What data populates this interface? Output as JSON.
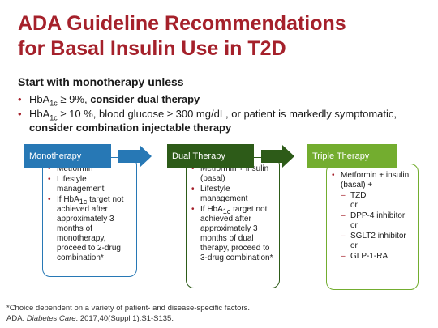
{
  "title": {
    "line1": "ADA Guideline Recommendations",
    "line2": "for Basal Insulin Use in T2D"
  },
  "intro": "Start with monotherapy unless",
  "bullets": [
    {
      "pre": "HbA",
      "sub": "1c",
      "mid": " ≥ 9%, ",
      "bold": "consider dual therapy"
    },
    {
      "pre": "HbA",
      "sub": "1c",
      "mid": " ≥ 10 %, blood glucose ≥ 300 mg/dL, or patient is markedly symptomatic, ",
      "bold": "consider combination injectable therapy"
    }
  ],
  "colors": {
    "title": "#a5212b",
    "blue": "#2778b5",
    "green": "#2d5b18",
    "lightgreen": "#73ad2f"
  },
  "stages": {
    "mono": {
      "label": "Monotherapy",
      "items": [
        "Metformin",
        "Lifestyle management"
      ],
      "item3": {
        "pre": "If HbA",
        "sub": "1c",
        "post": " target not achieved after approximately 3 months of monotherapy, proceed to 2-drug combination*"
      }
    },
    "dual": {
      "label": "Dual Therapy",
      "items": [
        "Metformin + insulin (basal)",
        "Lifestyle management"
      ],
      "item3": {
        "pre": "If HbA",
        "sub": "1c",
        "post": " target not achieved after approximately 3 months of dual therapy, proceed to 3-drug combination*"
      }
    },
    "triple": {
      "label": "Triple Therapy",
      "main": "Metformin + insulin (basal) +",
      "options": [
        "TZD",
        "DPP-4 inhibitor",
        "SGLT2 inhibitor",
        "GLP-1-RA"
      ],
      "or": "or"
    }
  },
  "footnote": {
    "line1": "*Choice dependent on a variety of patient- and disease-specific factors.",
    "line2_pre": "ADA. ",
    "journal": "Diabetes Care",
    "line2_post": ". 2017;40(Suppl 1):S1-S135."
  }
}
